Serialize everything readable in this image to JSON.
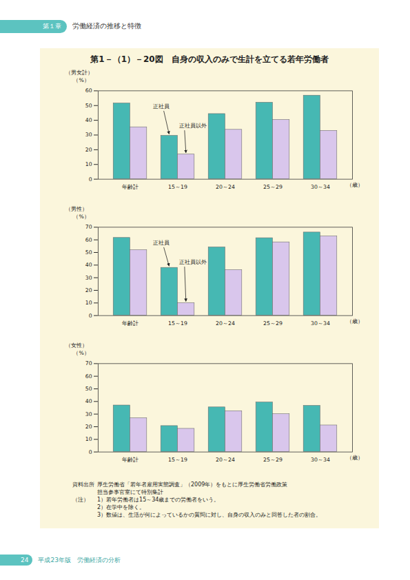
{
  "header": {
    "chapter": "第１章",
    "text": "労働経済の推移と特徴"
  },
  "figure_title": "第1－（1）－20図　自身の収入のみで生計を立てる若年労働者",
  "chart_data": [
    {
      "type": "bar",
      "title": "（男女計）",
      "y_label": "（%）",
      "x_label": "（歳）",
      "categories": [
        "年齢計",
        "15～19",
        "20～24",
        "25～29",
        "30～34"
      ],
      "series": [
        {
          "name": "正社員",
          "color": "#46b8b3",
          "values": [
            51.5,
            29.5,
            44.3,
            52.0,
            56.8
          ]
        },
        {
          "name": "正社員以外",
          "color": "#d9c6ec",
          "values": [
            35.3,
            16.8,
            33.6,
            40.3,
            32.9
          ]
        }
      ],
      "ylim": [
        0,
        60
      ],
      "yticks": [
        0,
        10,
        20,
        30,
        40,
        50,
        60
      ],
      "annotations": [
        {
          "text": "正社員",
          "category": "15～19",
          "series": "正社員"
        },
        {
          "text": "正社員以外",
          "category": "15～19",
          "series": "正社員以外"
        }
      ]
    },
    {
      "type": "bar",
      "title": "（男性）",
      "y_label": "（%）",
      "x_label": "（歳）",
      "categories": [
        "年齢計",
        "15～19",
        "20～24",
        "25～29",
        "30～34"
      ],
      "series": [
        {
          "name": "正社員",
          "color": "#46b8b3",
          "values": [
            61.6,
            37.9,
            54.1,
            61.4,
            65.9
          ]
        },
        {
          "name": "正社員以外",
          "color": "#d9c6ec",
          "values": [
            51.9,
            9.9,
            36.1,
            58.1,
            62.8
          ]
        }
      ],
      "ylim": [
        0,
        70
      ],
      "yticks": [
        0,
        10,
        20,
        30,
        40,
        50,
        60,
        70
      ],
      "annotations": [
        {
          "text": "正社員",
          "category": "15～19",
          "series": "正社員"
        },
        {
          "text": "正社員以外",
          "category": "15～19",
          "series": "正社員以外"
        }
      ]
    },
    {
      "type": "bar",
      "title": "（女性）",
      "y_label": "（%）",
      "x_label": "（歳）",
      "categories": [
        "年齢計",
        "15～19",
        "20～24",
        "25～29",
        "30～34"
      ],
      "series": [
        {
          "name": "正社員",
          "color": "#46b8b3",
          "values": [
            36.9,
            20.6,
            35.4,
            39.3,
            36.6
          ]
        },
        {
          "name": "正社員以外",
          "color": "#d9c6ec",
          "values": [
            26.8,
            18.4,
            32.4,
            30.0,
            21.1
          ]
        }
      ],
      "ylim": [
        0,
        70
      ],
      "yticks": [
        0,
        10,
        20,
        30,
        40,
        50,
        60,
        70
      ],
      "annotations": []
    }
  ],
  "source": {
    "label": "資料出所",
    "lines": [
      "厚生労働省「若年者雇用実態調査」（2009年）をもとに厚生労働省労働政策",
      "担当参事官室にて特別集計"
    ]
  },
  "notes": {
    "label": "（注）",
    "items": [
      "1）若年労働者は15～34歳までの労働者をいう。",
      "2）在学中を除く。",
      "3）数値は、生活が何によっているかの質問に対し、自身の収入のみと回答した者の割合。"
    ]
  },
  "footer": {
    "page": "24",
    "text": "平成23年版　労働経済の分析"
  }
}
